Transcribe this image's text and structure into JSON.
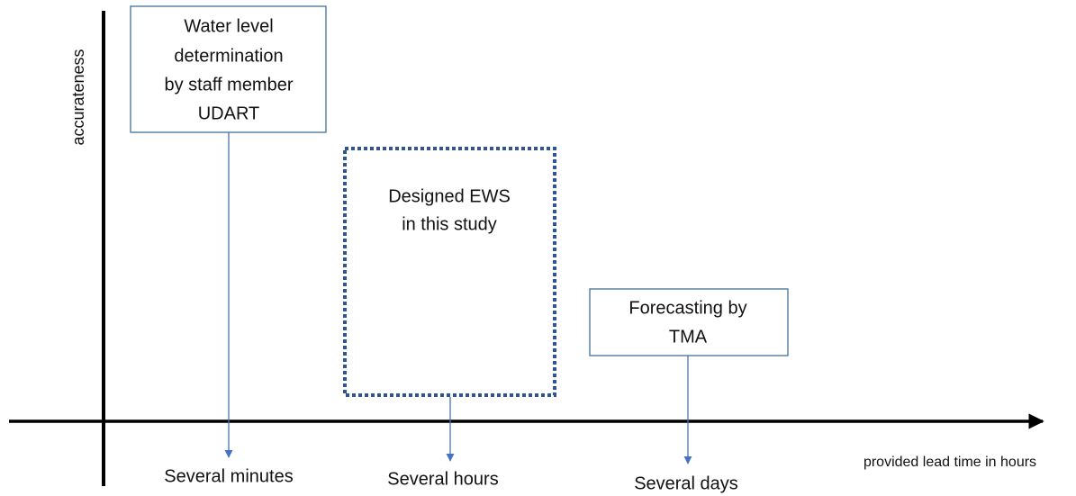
{
  "axes": {
    "y_label": "accurateness",
    "x_label": "provided lead time in hours"
  },
  "boxes": [
    {
      "lines": [
        "Water level",
        "determination",
        "by staff member",
        "UDART"
      ],
      "tick_label": "Several minutes"
    },
    {
      "lines": [
        "Designed EWS",
        "in this study"
      ],
      "tick_label": "Several hours"
    },
    {
      "lines": [
        "Forecasting by",
        "TMA"
      ],
      "tick_label": "Several days"
    }
  ]
}
